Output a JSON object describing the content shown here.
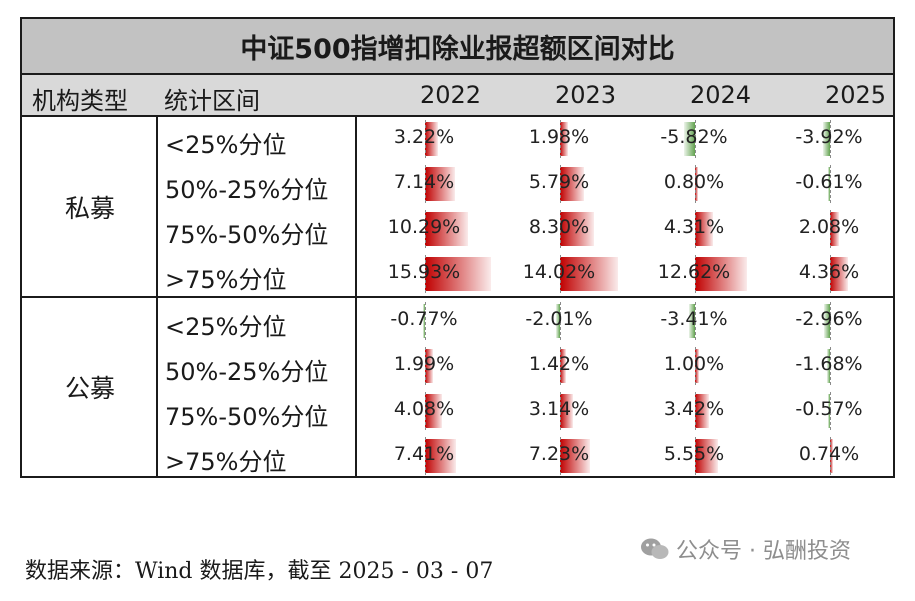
{
  "header": {
    "title": "中证500指增扣除业报超额区间对比",
    "col_type": "机构类型",
    "col_band": "统计区间",
    "years": [
      "2022",
      "2023",
      "2024",
      "2025"
    ]
  },
  "groups": [
    "私募",
    "公募"
  ],
  "bands": [
    "<25%分位",
    "50%-25%分位",
    "75%-50%分位",
    ">75%分位"
  ],
  "colors": {
    "positive": "#c00000",
    "negative": "#63a350",
    "title_bg": "#c2c2c2",
    "header_bg": "#d9d9d9"
  },
  "chart_data": {
    "type": "table",
    "title": "中证500指增扣除业报超额区间对比",
    "columns": [
      "2022",
      "2023",
      "2024",
      "2025"
    ],
    "rows": [
      {
        "group": "私募",
        "band": "<25%分位",
        "values": [
          3.22,
          1.98,
          -5.82,
          -3.92
        ],
        "labels": [
          "3.22%",
          "1.98%",
          "-5.82%",
          "-3.92%"
        ]
      },
      {
        "group": "私募",
        "band": "50%-25%分位",
        "values": [
          7.14,
          5.79,
          0.8,
          -0.61
        ],
        "labels": [
          "7.14%",
          "5.79%",
          "0.80%",
          "-0.61%"
        ]
      },
      {
        "group": "私募",
        "band": "75%-50%分位",
        "values": [
          10.29,
          8.3,
          4.31,
          2.08
        ],
        "labels": [
          "10.29%",
          "8.30%",
          "4.31%",
          "2.08%"
        ]
      },
      {
        "group": "私募",
        "band": ">75%分位",
        "values": [
          15.93,
          14.02,
          12.62,
          4.36
        ],
        "labels": [
          "15.93%",
          "14.02%",
          "12.62%",
          "4.36%"
        ]
      },
      {
        "group": "公募",
        "band": "<25%分位",
        "values": [
          -0.77,
          -2.01,
          -3.41,
          -2.96
        ],
        "labels": [
          "-0.77%",
          "-2.01%",
          "-3.41%",
          "-2.96%"
        ]
      },
      {
        "group": "公募",
        "band": "50%-25%分位",
        "values": [
          1.99,
          1.42,
          1.0,
          -1.68
        ],
        "labels": [
          "1.99%",
          "1.42%",
          "1.00%",
          "-1.68%"
        ]
      },
      {
        "group": "公募",
        "band": "75%-50%分位",
        "values": [
          4.08,
          3.14,
          3.42,
          -0.57
        ],
        "labels": [
          "4.08%",
          "3.14%",
          "3.42%",
          "-0.57%"
        ]
      },
      {
        "group": "公募",
        "band": ">75%分位",
        "values": [
          7.41,
          7.23,
          5.55,
          0.74
        ],
        "labels": [
          "7.41%",
          "7.23%",
          "5.55%",
          "0.74%"
        ]
      }
    ]
  },
  "footer": {
    "source": "数据来源：Wind 数据库，截至  2025 - 03 - 07",
    "watermark": "公众号 · 弘酬投资"
  }
}
